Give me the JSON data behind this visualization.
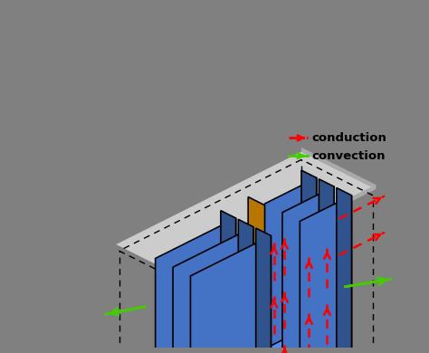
{
  "bg_color": "#808080",
  "plate_color": "#cccccc",
  "cell_color_front": "#4472c4",
  "cell_color_side": "#3560a8",
  "cell_color_top": "#5580d0",
  "cooling_front": "#ffa500",
  "cooling_side": "#cc8400",
  "cooling_top": "#ffbb44",
  "cell_outline": "#000000",
  "arrow_red": "#ff0000",
  "arrow_green": "#44cc00",
  "legend_conduction": "conduction",
  "legend_convection": "convection",
  "figsize": [
    4.74,
    3.9
  ],
  "dpi": 100
}
